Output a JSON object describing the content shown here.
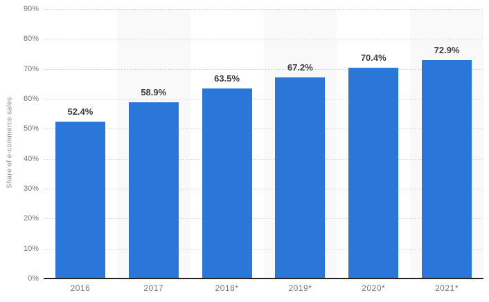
{
  "chart_data": {
    "type": "bar",
    "categories": [
      "2016",
      "2017",
      "2018*",
      "2019*",
      "2020*",
      "2021*"
    ],
    "values": [
      52.4,
      58.9,
      63.5,
      67.2,
      70.4,
      72.9
    ],
    "value_labels": [
      "52.4%",
      "58.9%",
      "63.5%",
      "67.2%",
      "70.4%",
      "72.9%"
    ],
    "title": "",
    "xlabel": "",
    "ylabel": "Share of e-commerce sales",
    "ylim": [
      0,
      90
    ],
    "y_tick_step": 10,
    "y_tick_labels": [
      "0%",
      "10%",
      "20%",
      "30%",
      "40%",
      "50%",
      "60%",
      "70%",
      "80%",
      "90%"
    ],
    "grid": "horizontal-dotted",
    "legend": "none",
    "colors": {
      "bar": "#2a76d9",
      "alt_band": "#f9f9f9",
      "gridline": "#c6c6c6",
      "axis_line": "#222222",
      "value_label": "#3d3d3d",
      "tick_label": "#757575",
      "axis_title": "#8c8c8c"
    }
  }
}
